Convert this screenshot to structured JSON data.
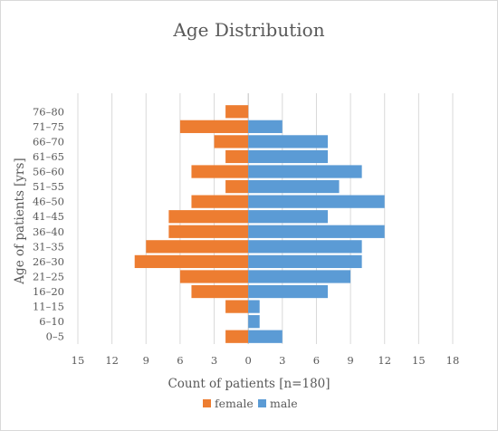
{
  "chart_data": {
    "type": "bar",
    "orientation": "horizontal",
    "title": "Age Distribution",
    "xlabel": "Count of patients [n=180]",
    "ylabel": "Age of patients [yrs]",
    "categories": [
      "0–5",
      "6–10",
      "11–15",
      "16–20",
      "21–25",
      "26–30",
      "31–35",
      "36–40",
      "41–45",
      "46–50",
      "51–55",
      "56–60",
      "61–65",
      "66–70",
      "71–75",
      "76–80"
    ],
    "series": [
      {
        "name": "female",
        "color": "#ed7d31",
        "direction": "left",
        "values": [
          2,
          0,
          2,
          5,
          6,
          10,
          9,
          7,
          7,
          5,
          2,
          5,
          2,
          3,
          6,
          2
        ]
      },
      {
        "name": "male",
        "color": "#5b9bd5",
        "direction": "right",
        "values": [
          3,
          1,
          1,
          7,
          9,
          10,
          10,
          12,
          7,
          12,
          8,
          10,
          7,
          7,
          3,
          0
        ]
      }
    ],
    "xlim": [
      -15,
      18
    ],
    "xticks": [
      -15,
      -12,
      -9,
      -6,
      -3,
      0,
      3,
      6,
      9,
      12,
      15,
      18
    ],
    "xtick_labels": [
      "15",
      "12",
      "9",
      "6",
      "3",
      "0",
      "3",
      "6",
      "9",
      "12",
      "15",
      "18"
    ],
    "grid": true,
    "legend_position": "bottom"
  }
}
